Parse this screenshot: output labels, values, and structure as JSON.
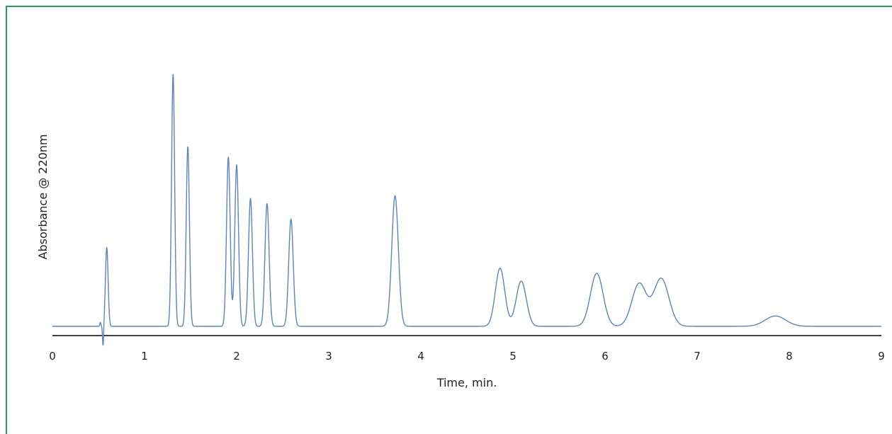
{
  "chart_data": {
    "type": "line",
    "title": "",
    "xlabel": "Time, min.",
    "ylabel": "Absorbance @ 220nm",
    "xlim": [
      0,
      9
    ],
    "ylim": [
      0,
      100
    ],
    "x_ticks": [
      "0",
      "1",
      "2",
      "3",
      "4",
      "5",
      "6",
      "7",
      "8",
      "9"
    ],
    "grid": false,
    "legend": "none",
    "line_color": "#5b84c4",
    "baseline": 2.5,
    "disturbance": {
      "time": 0.55,
      "dip": -8
    },
    "peaks": [
      {
        "time": 0.59,
        "height": 33
      },
      {
        "time": 1.31,
        "height": 100
      },
      {
        "time": 1.47,
        "height": 72
      },
      {
        "time": 1.91,
        "height": 68
      },
      {
        "time": 2.0,
        "height": 65
      },
      {
        "time": 2.15,
        "height": 52
      },
      {
        "time": 2.33,
        "height": 50
      },
      {
        "time": 2.59,
        "height": 44
      },
      {
        "time": 3.72,
        "height": 53
      },
      {
        "time": 4.86,
        "height": 25
      },
      {
        "time": 5.09,
        "height": 20
      },
      {
        "time": 5.91,
        "height": 23
      },
      {
        "time": 6.37,
        "height": 19
      },
      {
        "time": 6.61,
        "height": 21
      },
      {
        "time": 7.85,
        "height": 6.5
      }
    ]
  },
  "colors": {
    "frame_border": "#2e9a5a",
    "axis": "#000000"
  }
}
